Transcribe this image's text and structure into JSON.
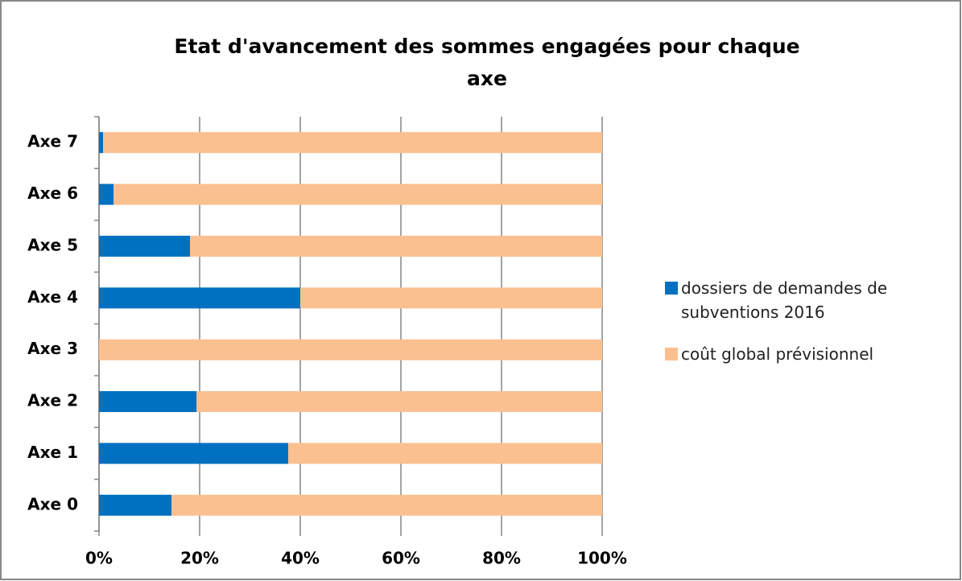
{
  "chart_data": {
    "type": "stacked_bar_horizontal",
    "title": "Etat d'avancement des sommes engagées pour chaque axe",
    "categories": [
      "Axe 0",
      "Axe 1",
      "Axe 2",
      "Axe 3",
      "Axe 4",
      "Axe 5",
      "Axe 6",
      "Axe 7"
    ],
    "series": [
      {
        "name": "dossiers de demandes de subventions 2016",
        "color": "#0070c0",
        "values": [
          14.4,
          37.6,
          19.4,
          0,
          40,
          18.1,
          2.9,
          0.8
        ]
      },
      {
        "name": "coût global prévisionnel",
        "color": "#fac090",
        "values": [
          85.6,
          62.4,
          80.6,
          100,
          60,
          81.9,
          97.1,
          99.2
        ]
      }
    ],
    "xlim": [
      0,
      100
    ],
    "xticks": [
      {
        "value": 0,
        "label": "0%"
      },
      {
        "value": 20,
        "label": "20%"
      },
      {
        "value": 40,
        "label": "40%"
      },
      {
        "value": 60,
        "label": "60%"
      },
      {
        "value": 80,
        "label": "80%"
      },
      {
        "value": 100,
        "label": "100%"
      }
    ],
    "grid": true,
    "legend": "right"
  }
}
